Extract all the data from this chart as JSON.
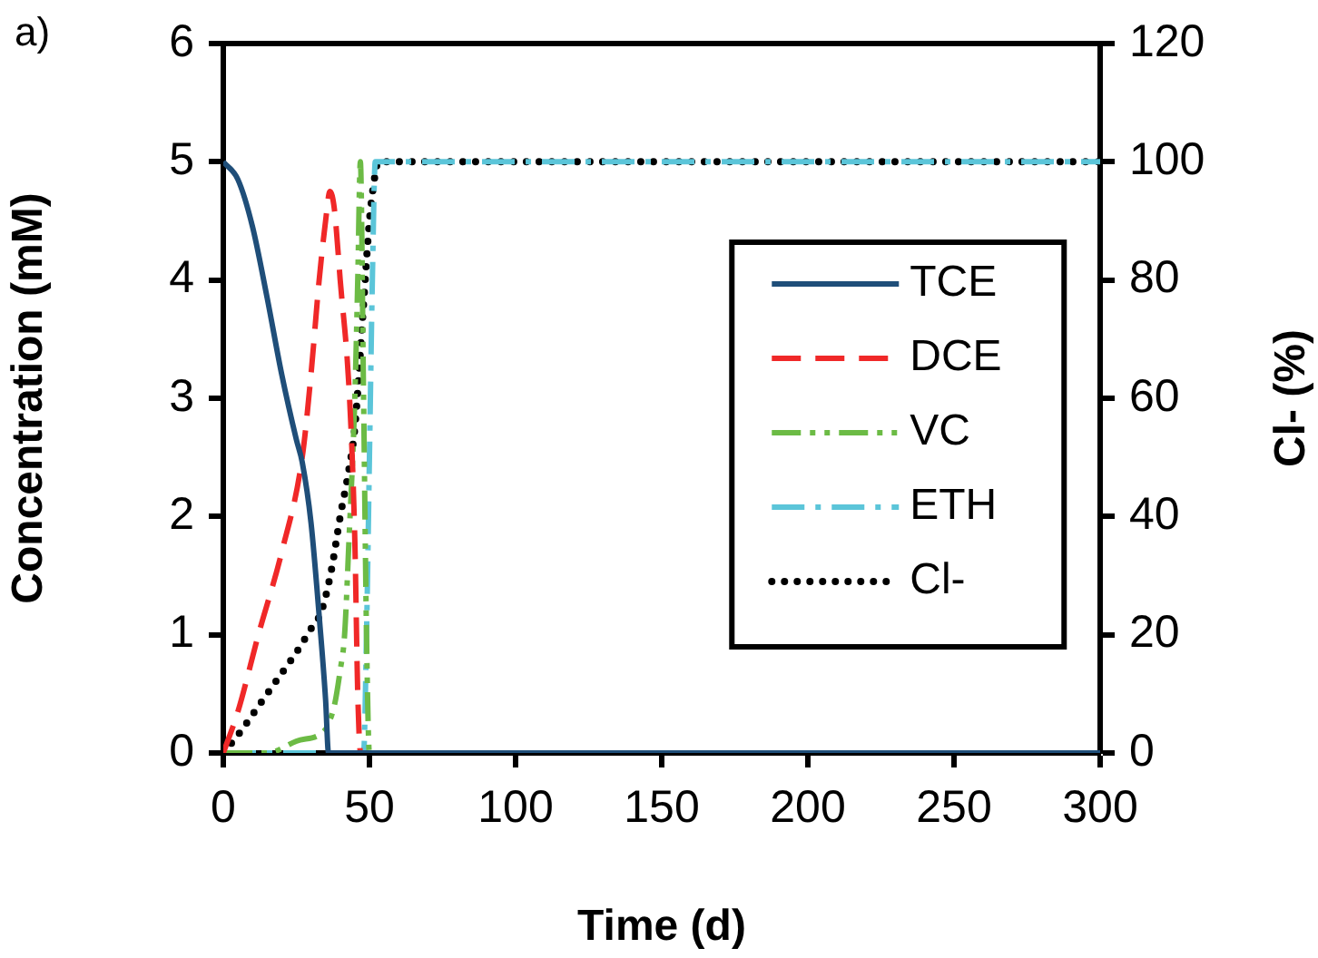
{
  "chart_data": {
    "type": "line",
    "xlabel": "Time (d)",
    "ylabel": "Concentration (mM)",
    "y2label": "Cl- (%)",
    "xlim": [
      0,
      300
    ],
    "xticks": [
      0,
      50,
      100,
      150,
      200,
      250,
      300
    ],
    "ylim": [
      0,
      6
    ],
    "yticks": [
      0,
      1,
      2,
      3,
      4,
      5,
      6
    ],
    "y2lim": [
      0,
      120
    ],
    "y2ticks": [
      0,
      20,
      40,
      60,
      80,
      100,
      120
    ],
    "grid": false,
    "legend": "right",
    "marker": "none",
    "annotations": [
      "a)"
    ],
    "series": [
      {
        "name": "TCE",
        "color": "#1f4e79",
        "line_style": "solid",
        "x": [
          0,
          5,
          10,
          15,
          20,
          25,
          27,
          30,
          33,
          35,
          36,
          300
        ],
        "values": [
          5,
          4.85,
          4.45,
          3.85,
          3.2,
          2.65,
          2.46,
          1.95,
          1.1,
          0.45,
          0,
          0
        ]
      },
      {
        "name": "DCE",
        "color": "#f02828",
        "line_style": "dashed",
        "x": [
          0,
          5,
          12,
          20,
          27,
          30,
          32.8,
          35,
          36.5,
          38,
          40,
          43.2,
          45,
          46,
          47,
          300
        ],
        "values": [
          0,
          0.35,
          1,
          1.7,
          2.5,
          3.2,
          4,
          4.5,
          4.75,
          4.6,
          4,
          3,
          1.8,
          0.5,
          0,
          0
        ]
      },
      {
        "name": "VC",
        "color": "#6cbb45",
        "line_style": "dashdotdot",
        "x": [
          0,
          15,
          25,
          35,
          36,
          38,
          40,
          41.5,
          43,
          45,
          46,
          46.9,
          48,
          49,
          50,
          300
        ],
        "values": [
          0,
          0,
          0.1,
          0.2,
          0.25,
          0.4,
          0.7,
          1,
          1.8,
          3,
          4,
          5,
          3,
          1,
          0,
          0
        ]
      },
      {
        "name": "ETH",
        "color": "#5bc5d9",
        "line_style": "dashdot",
        "x": [
          0,
          48,
          49,
          50,
          51,
          52,
          300
        ],
        "values": [
          0,
          0,
          1,
          2.5,
          4,
          5,
          5
        ]
      },
      {
        "name": "Cl-",
        "color": "#000000",
        "line_style": "dotted",
        "axis": "y2",
        "x": [
          0,
          5,
          10,
          15,
          20,
          25,
          30,
          33.6,
          37,
          40,
          43,
          45,
          48,
          50,
          52,
          53,
          300
        ],
        "values": [
          0,
          3,
          6.5,
          10,
          13.5,
          17,
          21,
          24,
          31,
          40,
          48,
          55,
          76,
          90,
          98,
          100,
          100
        ]
      }
    ]
  }
}
